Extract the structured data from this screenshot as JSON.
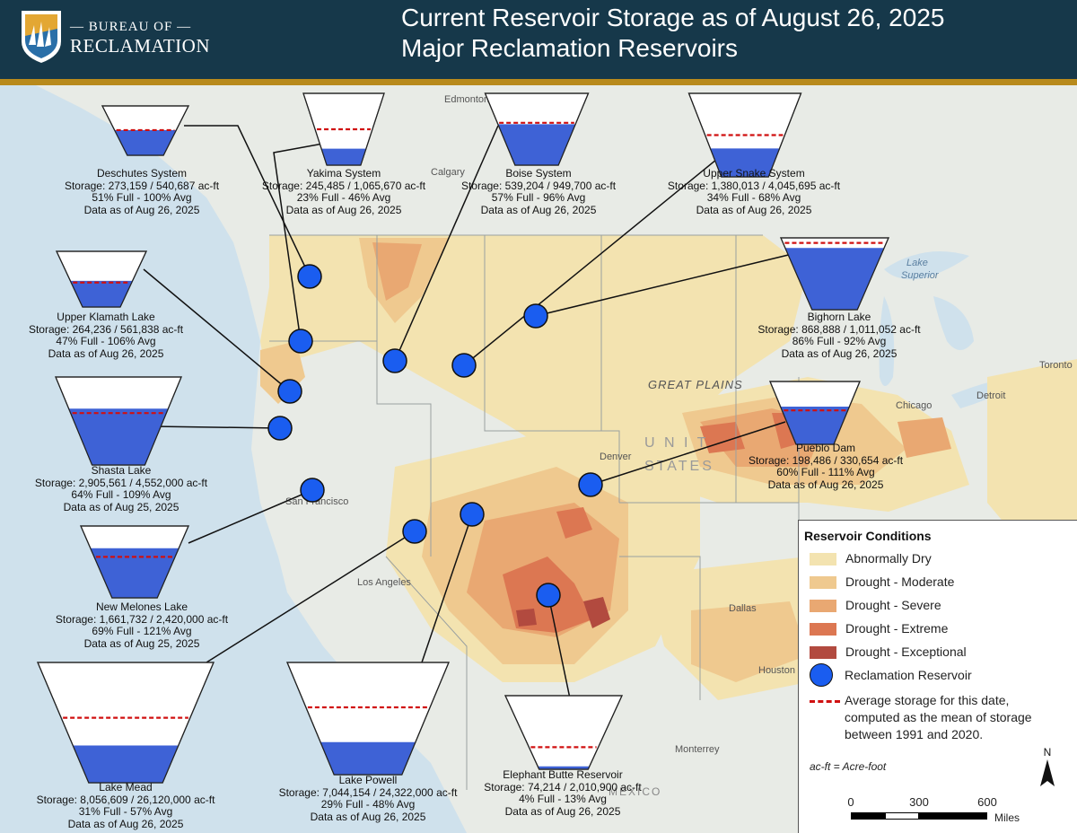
{
  "header": {
    "logo_line1": "— BUREAU OF —",
    "logo_line2": "RECLAMATION",
    "title_line1": "Current Reservoir Storage as of August 26, 2025",
    "title_line2": "Major Reclamation Reservoirs"
  },
  "map_labels": {
    "edmonton": "Edmonton",
    "calgary": "Calgary",
    "lake_superior_1": "Lake",
    "lake_superior_2": "Superior",
    "great_plains": "GREAT PLAINS",
    "toronto": "Toronto",
    "detroit": "Detroit",
    "chicago": "Chicago",
    "denver": "Denver",
    "united_1": "U N I T",
    "united_2": "STATES",
    "san_francisco": "San Francisco",
    "los_angeles": "Los Angeles",
    "dallas": "Dallas",
    "houston": "Houston",
    "monterrey": "Monterrey",
    "mexico": "MEXICO"
  },
  "reservoirs": [
    {
      "name": "Deschutes System",
      "storage": "Storage: 273,159 / 540,687 ac-ft",
      "percent": "51% Full - 100% Avg",
      "asof": "Data as of Aug 26, 2025",
      "fill_fraction": 0.51,
      "avg_fraction": 0.51
    },
    {
      "name": "Yakima System",
      "storage": "Storage: 245,485 / 1,065,670 ac-ft",
      "percent": "23% Full - 46% Avg",
      "asof": "Data as of Aug 26, 2025",
      "fill_fraction": 0.23,
      "avg_fraction": 0.5
    },
    {
      "name": "Boise System",
      "storage": "Storage: 539,204 / 949,700 ac-ft",
      "percent": "57% Full - 96% Avg",
      "asof": "Data as of Aug 26, 2025",
      "fill_fraction": 0.57,
      "avg_fraction": 0.59
    },
    {
      "name": "Upper Snake System",
      "storage": "Storage: 1,380,013 / 4,045,695 ac-ft",
      "percent": "34% Full - 68% Avg",
      "asof": "Data as of Aug 26, 2025",
      "fill_fraction": 0.34,
      "avg_fraction": 0.5
    },
    {
      "name": "Upper Klamath Lake",
      "storage": "Storage: 264,236 / 561,838 ac-ft",
      "percent": "47% Full - 106% Avg",
      "asof": "Data as of Aug 26, 2025",
      "fill_fraction": 0.47,
      "avg_fraction": 0.44
    },
    {
      "name": "Bighorn Lake",
      "storage": "Storage: 868,888 / 1,011,052 ac-ft",
      "percent": "86% Full - 92% Avg",
      "asof": "Data as of Aug 26, 2025",
      "fill_fraction": 0.86,
      "avg_fraction": 0.93
    },
    {
      "name": "Shasta Lake",
      "storage": "Storage: 2,905,561 / 4,552,000 ac-ft",
      "percent": "64% Full - 109% Avg",
      "asof": "Data as of Aug 25, 2025",
      "fill_fraction": 0.64,
      "avg_fraction": 0.59
    },
    {
      "name": "Pueblo Dam",
      "storage": "Storage: 198,486 / 330,654 ac-ft",
      "percent": "60% Full - 111% Avg",
      "asof": "Data as of Aug 26, 2025",
      "fill_fraction": 0.6,
      "avg_fraction": 0.54
    },
    {
      "name": "New Melones Lake",
      "storage": "Storage: 1,661,732 / 2,420,000 ac-ft",
      "percent": "69% Full - 121% Avg",
      "asof": "Data as of Aug 25, 2025",
      "fill_fraction": 0.69,
      "avg_fraction": 0.57
    },
    {
      "name": "Lake Mead",
      "storage": "Storage: 8,056,609 / 26,120,000 ac-ft",
      "percent": "31% Full - 57% Avg",
      "asof": "Data as of Aug 26, 2025",
      "fill_fraction": 0.31,
      "avg_fraction": 0.54
    },
    {
      "name": "Lake Powell",
      "storage": "Storage: 7,044,154 / 24,322,000 ac-ft",
      "percent": "29% Full - 48% Avg",
      "asof": "Data as of Aug 26, 2025",
      "fill_fraction": 0.29,
      "avg_fraction": 0.6
    },
    {
      "name": "Elephant Butte Reservoir",
      "storage": "Storage: 74,214 / 2,010,900 ac-ft",
      "percent": "4% Full - 13% Avg",
      "asof": "Data as of Aug 26, 2025",
      "fill_fraction": 0.04,
      "avg_fraction": 0.3
    }
  ],
  "legend": {
    "title": "Reservoir Conditions",
    "items": [
      {
        "label": "Abnormally Dry",
        "color": "#f3e3b0"
      },
      {
        "label": "Drought - Moderate",
        "color": "#efc98f"
      },
      {
        "label": "Drought - Severe",
        "color": "#e9a872"
      },
      {
        "label": "Drought - Extreme",
        "color": "#dc7752"
      },
      {
        "label": "Drought - Exceptional",
        "color": "#b24a3f"
      }
    ],
    "reservoir_label": "Reclamation Reservoir",
    "avg_line1": "Average storage for this date,",
    "avg_line2": "computed as the mean of storage",
    "avg_line3": "between 1991 and 2020.",
    "acft_note": "ac-ft = Acre-foot",
    "north": "N",
    "scale_ticks": [
      "0",
      "300",
      "600"
    ],
    "scale_unit": "Miles"
  },
  "colors": {
    "reservoir_fill": "#3e62d6",
    "avg_line": "#d01010",
    "marker": "#1a5df0",
    "header_bg": "#16384a",
    "header_rule": "#b88a1c"
  }
}
